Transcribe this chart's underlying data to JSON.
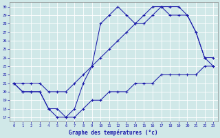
{
  "title": "Graphe des températures (°c)",
  "bg_color": "#d0e8e8",
  "grid_color": "#b0d0d0",
  "line_color": "#1a1aaa",
  "xlim": [
    -0.5,
    23.5
  ],
  "ylim": [
    16.5,
    30.5
  ],
  "yticks": [
    17,
    18,
    19,
    20,
    21,
    22,
    23,
    24,
    25,
    26,
    27,
    28,
    29,
    30
  ],
  "xticks": [
    0,
    1,
    2,
    3,
    4,
    5,
    6,
    7,
    8,
    9,
    10,
    11,
    12,
    13,
    14,
    15,
    16,
    17,
    18,
    19,
    20,
    21,
    22,
    23
  ],
  "hours": [
    0,
    1,
    2,
    3,
    4,
    5,
    6,
    7,
    8,
    9,
    10,
    11,
    12,
    13,
    14,
    15,
    16,
    17,
    18,
    19,
    20,
    21,
    22,
    23
  ],
  "line_top": [
    21,
    20,
    20,
    20,
    18,
    17,
    17,
    18,
    21,
    23,
    28,
    29,
    30,
    29,
    28,
    29,
    30,
    30,
    29,
    29,
    29,
    27,
    24,
    23
  ],
  "line_mid": [
    21,
    21,
    21,
    21,
    20,
    20,
    20,
    21,
    22,
    23,
    24,
    25,
    26,
    27,
    28,
    28,
    29,
    30,
    30,
    30,
    29,
    27,
    24,
    24
  ],
  "line_bot": [
    21,
    20,
    20,
    20,
    18,
    18,
    17,
    17,
    18,
    19,
    19,
    20,
    20,
    20,
    21,
    21,
    21,
    22,
    22,
    22,
    22,
    22,
    23,
    23
  ]
}
